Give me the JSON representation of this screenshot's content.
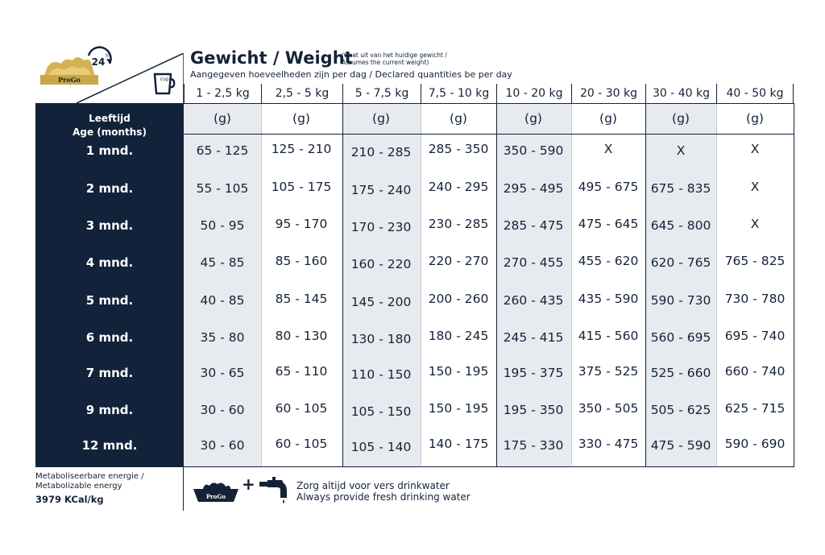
{
  "header": {
    "logo_text": "ProGo",
    "badge_24": "24",
    "badge_h": "h",
    "cup_label": "cup",
    "title": "Gewicht / Weight",
    "title_note_line1": "(Gaat uit van het huidige gewicht /",
    "title_note_line2": "Assumes the current weight)",
    "subtitle": "Aangegeven hoeveelheden zijn per dag / Declared quantities be per day"
  },
  "weights": [
    "1 - 2,5 kg",
    "2,5 - 5 kg",
    "5 - 7,5 kg",
    "7,5 - 10 kg",
    "10 - 20 kg",
    "20 - 30 kg",
    "30 - 40 kg",
    "40 - 50 kg"
  ],
  "unit": "(g)",
  "age_header": {
    "line1": "Leeftijd",
    "line2": "Age (months)"
  },
  "ages": [
    "1 mnd.",
    "2 mnd.",
    "3 mnd.",
    "4 mnd.",
    "5 mnd.",
    "6 mnd.",
    "7 mnd.",
    "9 mnd.",
    "12 mnd."
  ],
  "rows": [
    [
      "65 - 125",
      "125 - 210",
      "210 - 285",
      "285 - 350",
      "350 - 590",
      "X",
      "X",
      "X"
    ],
    [
      "55 - 105",
      "105 - 175",
      "175 - 240",
      "240 - 295",
      "295 - 495",
      "495 - 675",
      "675 - 835",
      "X"
    ],
    [
      "50 - 95",
      "95 - 170",
      "170 - 230",
      "230 - 285",
      "285 - 475",
      "475 - 645",
      "645 - 800",
      "X"
    ],
    [
      "45 - 85",
      "85 - 160",
      "160 - 220",
      "220 - 270",
      "270 - 455",
      "455 - 620",
      "620 - 765",
      "765 - 825"
    ],
    [
      "40 - 85",
      "85 - 145",
      "145 - 200",
      "200 - 260",
      "260 - 435",
      "435 - 590",
      "590 - 730",
      "730 - 780"
    ],
    [
      "35 - 80",
      "80 - 130",
      "130 - 180",
      "180 - 245",
      "245 - 415",
      "415 - 560",
      "560 - 695",
      "695 - 740"
    ],
    [
      "30 - 65",
      "65 - 110",
      "110 - 150",
      "150 - 195",
      "195 - 375",
      "375 - 525",
      "525 - 660",
      "660 - 740"
    ],
    [
      "30 - 60",
      "60 - 105",
      "105 - 150",
      "150 - 195",
      "195 - 350",
      "350 - 505",
      "505 - 625",
      "625 - 715"
    ],
    [
      "30 - 60",
      "60 - 105",
      "105 - 140",
      "140 - 175",
      "175 - 330",
      "330 - 475",
      "475 - 590",
      "590 - 690"
    ]
  ],
  "footer": {
    "energy_line1": "Metaboliseerbare energie /",
    "energy_line2": "Metabolizable energy",
    "energy_value": "3979 KCal/kg",
    "bowl_label": "ProGo",
    "plus": "+",
    "water_line1": "Zorg altijd voor vers drinkwater",
    "water_line2": "Always provide fresh drinking water"
  },
  "colors": {
    "navy": "#12223a",
    "gold": "#c9a646",
    "shade": "#e7eaee",
    "text": "#142238"
  }
}
